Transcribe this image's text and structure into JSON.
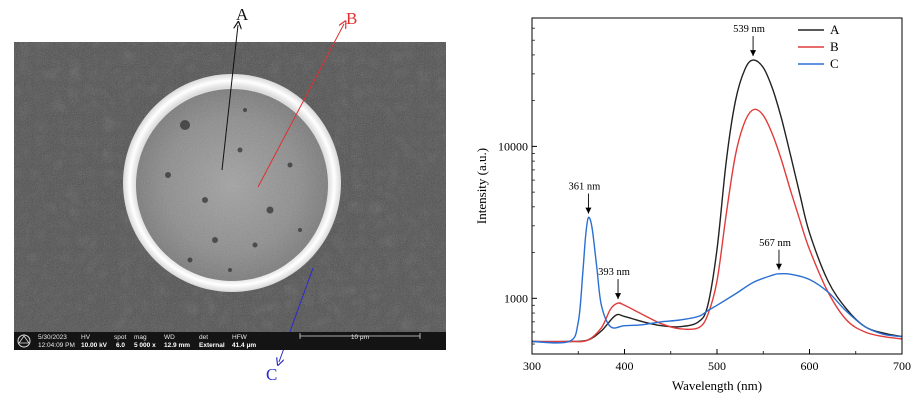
{
  "sem": {
    "labels": {
      "a": "A",
      "b": "B",
      "c": "C"
    },
    "colors": {
      "a": "#111111",
      "b": "#e03030",
      "c": "#2a2ad0"
    },
    "info_bar": {
      "date": "5/30/2023",
      "time": "12:04:09 PM",
      "hv_label": "HV",
      "hv_value": "10.00 kV",
      "spot_label": "spot",
      "spot_value": "6.0",
      "mag_label": "mag",
      "mag_value": "5 000 x",
      "wd_label": "WD",
      "wd_value": "12.9 mm",
      "det_label": "det",
      "det_value": "External",
      "hfw_label": "HFW",
      "hfw_value": "41.4 μm",
      "scale_bar_label": "10 μm"
    }
  },
  "chart_data": {
    "type": "line",
    "xlabel": "Wavelength (nm)",
    "ylabel": "Intensity (a.u.)",
    "xlim": [
      300,
      700
    ],
    "x_ticks": [
      300,
      400,
      500,
      600,
      700
    ],
    "y_scale": "log",
    "ylim": [
      430,
      70000
    ],
    "y_ticks": [
      1000,
      10000
    ],
    "y_tick_labels": [
      "1000",
      "10000"
    ],
    "grid": false,
    "legend_position": "top-right",
    "series": [
      {
        "name": "A",
        "color": "#222222",
        "x": [
          300,
          340,
          360,
          375,
          390,
          400,
          420,
          440,
          460,
          480,
          490,
          500,
          510,
          520,
          530,
          539,
          550,
          560,
          570,
          580,
          590,
          600,
          620,
          640,
          660,
          680,
          700
        ],
        "y": [
          520,
          520,
          530,
          610,
          770,
          760,
          700,
          660,
          650,
          700,
          900,
          2100,
          8000,
          20000,
          32000,
          37000,
          33000,
          24000,
          15000,
          8500,
          4700,
          2700,
          1300,
          850,
          650,
          590,
          560
        ]
      },
      {
        "name": "B",
        "color": "#e03c3c",
        "x": [
          300,
          340,
          360,
          375,
          385,
          393,
          400,
          420,
          440,
          460,
          480,
          490,
          500,
          510,
          520,
          530,
          540,
          550,
          560,
          570,
          580,
          590,
          600,
          620,
          640,
          660,
          680,
          700
        ],
        "y": [
          520,
          520,
          530,
          640,
          850,
          930,
          900,
          780,
          680,
          630,
          640,
          780,
          1300,
          3600,
          8800,
          14500,
          17500,
          16000,
          12000,
          8000,
          5000,
          3200,
          2100,
          1100,
          720,
          600,
          560,
          540
        ]
      },
      {
        "name": "C",
        "color": "#2a6fd1",
        "x": [
          300,
          340,
          350,
          355,
          358,
          361,
          365,
          370,
          375,
          385,
          400,
          420,
          440,
          460,
          480,
          490,
          500,
          520,
          540,
          560,
          567,
          580,
          600,
          620,
          640,
          660,
          680,
          700
        ],
        "y": [
          520,
          520,
          700,
          1500,
          2600,
          3400,
          2900,
          1600,
          900,
          650,
          660,
          670,
          700,
          720,
          760,
          830,
          900,
          1070,
          1280,
          1420,
          1450,
          1440,
          1330,
          1100,
          820,
          650,
          580,
          560
        ]
      }
    ],
    "annotations": [
      {
        "text": "539 nm",
        "x": 539,
        "y": 37000
      },
      {
        "text": "361 nm",
        "x": 361,
        "y": 3400
      },
      {
        "text": "393 nm",
        "x": 393,
        "y": 930
      },
      {
        "text": "567 nm",
        "x": 567,
        "y": 1450
      }
    ]
  }
}
